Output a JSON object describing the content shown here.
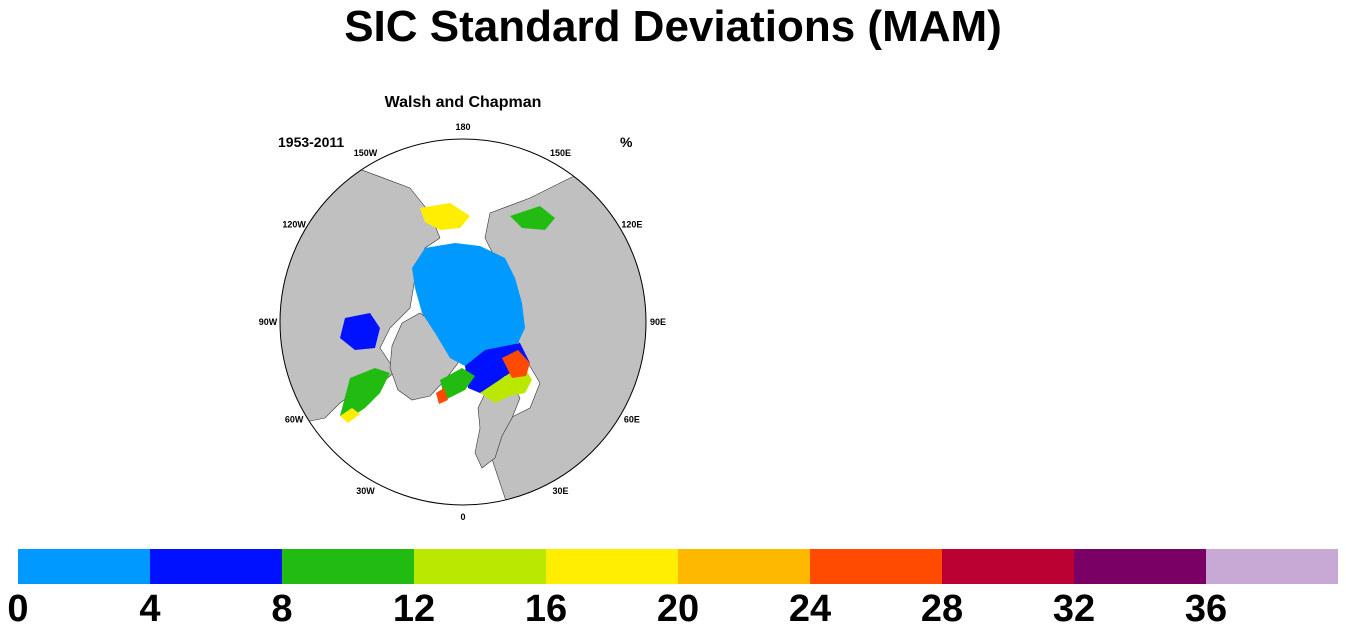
{
  "title": "SIC Standard Deviations (MAM)",
  "subtitle": "Walsh and Chapman",
  "period": "1953-2011",
  "units": "%",
  "map": {
    "projection": "north-polar-stereographic",
    "longitude_labels": [
      {
        "text": "180",
        "lon": 180
      },
      {
        "text": "150E",
        "lon": 150
      },
      {
        "text": "120E",
        "lon": 120
      },
      {
        "text": "90E",
        "lon": 90
      },
      {
        "text": "60E",
        "lon": 60
      },
      {
        "text": "30E",
        "lon": 30
      },
      {
        "text": "0",
        "lon": 0
      },
      {
        "text": "30W",
        "lon": -30
      },
      {
        "text": "60W",
        "lon": -60
      },
      {
        "text": "90W",
        "lon": -90
      },
      {
        "text": "120W",
        "lon": -120
      },
      {
        "text": "150W",
        "lon": -150
      }
    ],
    "land_color": "#c0c0c0",
    "ocean_color": "#ffffff"
  },
  "colorbar": {
    "colors": [
      "#0099ff",
      "#0011ff",
      "#22bb11",
      "#bbe800",
      "#ffee00",
      "#ffb800",
      "#ff4a00",
      "#bb0033",
      "#7a0066",
      "#c8a8d4"
    ],
    "labels": [
      "0",
      "4",
      "8",
      "12",
      "16",
      "20",
      "24",
      "28",
      "32",
      "36"
    ]
  }
}
